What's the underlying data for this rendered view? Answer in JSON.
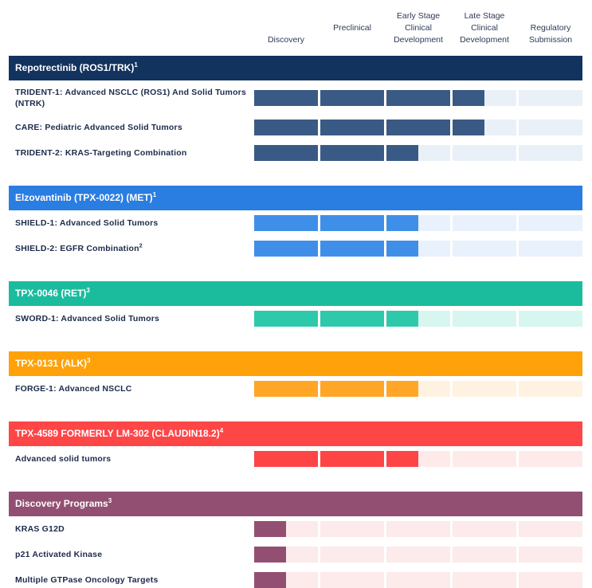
{
  "chart_data": {
    "type": "table",
    "phases": [
      "Discovery",
      "Preclinical",
      "Early Stage\nClinical\nDevelopment",
      "Late Stage\nClinical\nDevelopment",
      "Regulatory\nSubmission"
    ],
    "groups": [
      {
        "name": "Repotrectinib (ROS1/TRK)",
        "sup": "1",
        "color": "#13335f",
        "bar_color": "#3a5a86",
        "track_color": "#eaf0f7",
        "rows": [
          {
            "label": "TRIDENT-1: Advanced NSCLC (ROS1) And Solid Tumors (NTRK)",
            "sup": "",
            "progress": 3.5
          },
          {
            "label": "CARE: Pediatric Advanced Solid Tumors",
            "sup": "",
            "progress": 3.5
          },
          {
            "label": "TRIDENT-2: KRAS-Targeting Combination",
            "sup": "",
            "progress": 2.5
          }
        ]
      },
      {
        "name": "Elzovantinib (TPX-0022) (MET)",
        "sup": "1",
        "color": "#2a7de1",
        "bar_color": "#3f8fe8",
        "track_color": "#e9f1fc",
        "rows": [
          {
            "label": "SHIELD-1: Advanced Solid Tumors",
            "sup": "",
            "progress": 2.5
          },
          {
            "label": "SHIELD-2: EGFR Combination",
            "sup": "2",
            "progress": 2.5
          }
        ]
      },
      {
        "name": "TPX-0046 (RET)",
        "sup": "3",
        "color": "#1bbc9e",
        "bar_color": "#2ec9ab",
        "track_color": "#d7f6ef",
        "rows": [
          {
            "label": "SWORD-1: Advanced Solid Tumors",
            "sup": "",
            "progress": 2.5
          }
        ]
      },
      {
        "name": "TPX-0131 (ALK)",
        "sup": "3",
        "color": "#ffa20a",
        "bar_color": "#ffa627",
        "track_color": "#fff2e0",
        "rows": [
          {
            "label": "FORGE-1: Advanced NSCLC",
            "sup": "",
            "progress": 2.5
          }
        ]
      },
      {
        "name": "TPX-4589 FORMERLY LM-302 (CLAUDIN18.2)",
        "sup": "4",
        "color": "#ff4647",
        "bar_color": "#ff4445",
        "track_color": "#ffeaea",
        "rows": [
          {
            "label": "Advanced solid tumors",
            "sup": "",
            "progress": 2.5
          }
        ]
      },
      {
        "name": "Discovery Programs",
        "sup": "3",
        "color": "#934f72",
        "bar_color": "#934f72",
        "track_color": "#fdeaea",
        "rows": [
          {
            "label": "KRAS G12D",
            "sup": "",
            "progress": 0.5
          },
          {
            "label": "p21 Activated Kinase",
            "sup": "",
            "progress": 0.5
          },
          {
            "label": "Multiple GTPase Oncology Targets",
            "sup": "",
            "progress": 0.5
          }
        ]
      }
    ]
  }
}
